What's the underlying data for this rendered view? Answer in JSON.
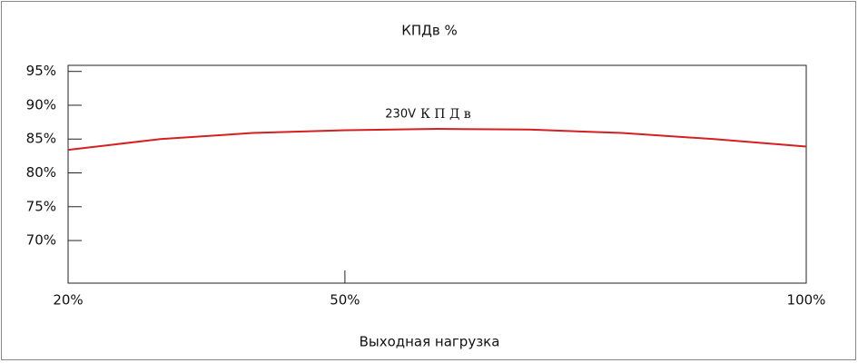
{
  "chart_data": {
    "type": "line",
    "title": "КПДв %",
    "x_label": "Выходная нагрузка",
    "x": [
      20,
      30,
      40,
      50,
      60,
      70,
      80,
      90,
      100
    ],
    "series": [
      {
        "name": "230V",
        "color": "#d42020",
        "values": [
          83.4,
          85.0,
          85.9,
          86.3,
          86.5,
          86.4,
          85.9,
          85.0,
          83.9
        ]
      }
    ],
    "annotation": "К П Д в",
    "xlim": [
      20,
      100
    ],
    "xticks": [
      {
        "value": 20,
        "label": "20%"
      },
      {
        "value": 50,
        "label": "50%"
      },
      {
        "value": 100,
        "label": "100%"
      }
    ],
    "ylim": [
      63.7,
      95.9
    ],
    "yticks": [
      {
        "value": 70,
        "label": "70%"
      },
      {
        "value": 75,
        "label": "75%"
      },
      {
        "value": 80,
        "label": "80%"
      },
      {
        "value": 85,
        "label": "85%"
      },
      {
        "value": 90,
        "label": "90%"
      },
      {
        "value": 95,
        "label": "95%"
      }
    ],
    "grid": false
  }
}
